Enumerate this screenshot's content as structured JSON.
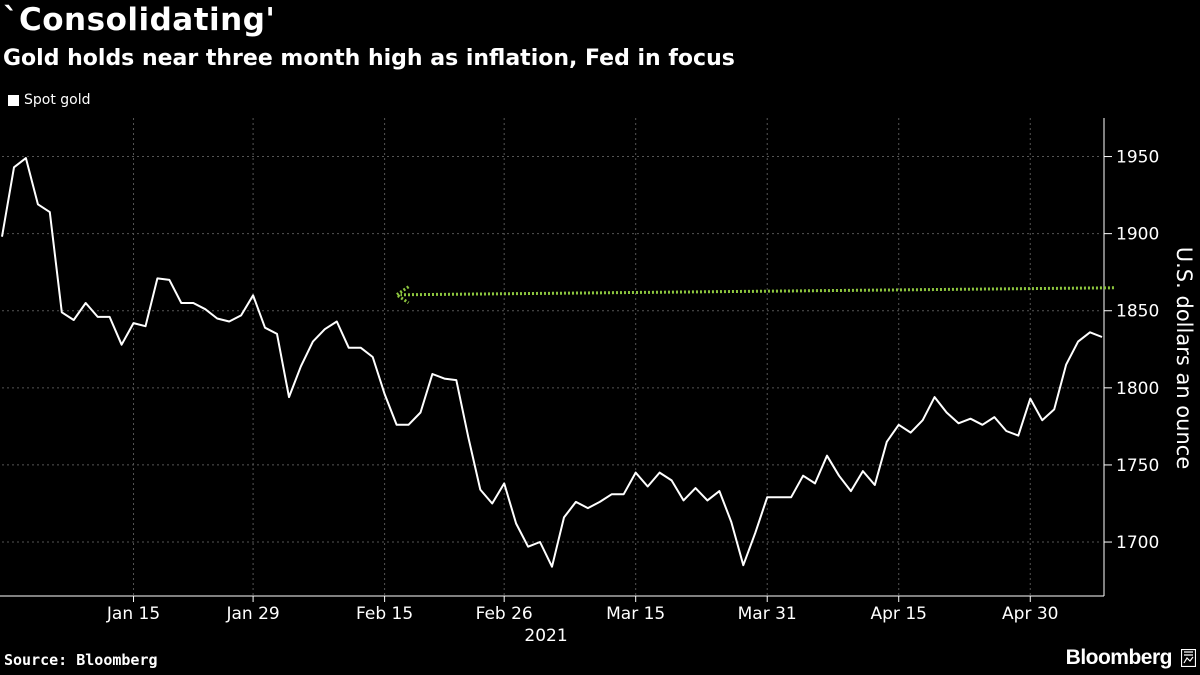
{
  "header": {
    "title": "`Consolidating'",
    "subtitle": "Gold holds near three month high as inflation, Fed in focus"
  },
  "footer": {
    "source": "Source: Bloomberg",
    "brand": "Bloomberg"
  },
  "colors": {
    "background": "#000000",
    "line": "#ffffff",
    "grid": "#555555",
    "arrow": "#8dc63f"
  },
  "chart_data": {
    "type": "line",
    "title": "`Consolidating'",
    "subtitle": "Gold holds near three month high as inflation, Fed in focus",
    "xlabel": "2021",
    "ylabel": "U.S. dollars an ounce",
    "ylim": [
      1665,
      1975
    ],
    "yticks": [
      1700,
      1750,
      1800,
      1850,
      1900,
      1950
    ],
    "xticks": [
      "Jan 15",
      "Jan 29",
      "Feb 15",
      "Feb 26",
      "Mar 15",
      "Mar 31",
      "Apr 15",
      "Apr 30"
    ],
    "xtick_index": [
      11,
      21,
      32,
      42,
      53,
      64,
      75,
      86
    ],
    "year_label": "2021",
    "grid": true,
    "legend": "top-left",
    "series": [
      {
        "name": "Spot gold",
        "values": [
          1898,
          1943,
          1949,
          1919,
          1914,
          1849,
          1844,
          1855,
          1846,
          1846,
          1828,
          1842,
          1840,
          1871,
          1870,
          1855,
          1855,
          1851,
          1845,
          1843,
          1847,
          1860,
          1839,
          1835,
          1794,
          1814,
          1830,
          1838,
          1843,
          1826,
          1826,
          1820,
          1796,
          1776,
          1776,
          1784,
          1809,
          1806,
          1805,
          1768,
          1734,
          1725,
          1738,
          1712,
          1697,
          1700,
          1684,
          1716,
          1726,
          1722,
          1726,
          1731,
          1731,
          1745,
          1736,
          1745,
          1740,
          1727,
          1735,
          1727,
          1733,
          1713,
          1685,
          1706,
          1729,
          1729,
          1729,
          1743,
          1738,
          1756,
          1743,
          1733,
          1746,
          1737,
          1765,
          1776,
          1771,
          1779,
          1794,
          1784,
          1777,
          1780,
          1776,
          1781,
          1772,
          1769,
          1793,
          1779,
          1786,
          1815,
          1830,
          1836,
          1833
        ]
      }
    ],
    "annotation": {
      "type": "arrow",
      "y_value": 1861,
      "from_index": 93,
      "to_index": 33
    }
  }
}
